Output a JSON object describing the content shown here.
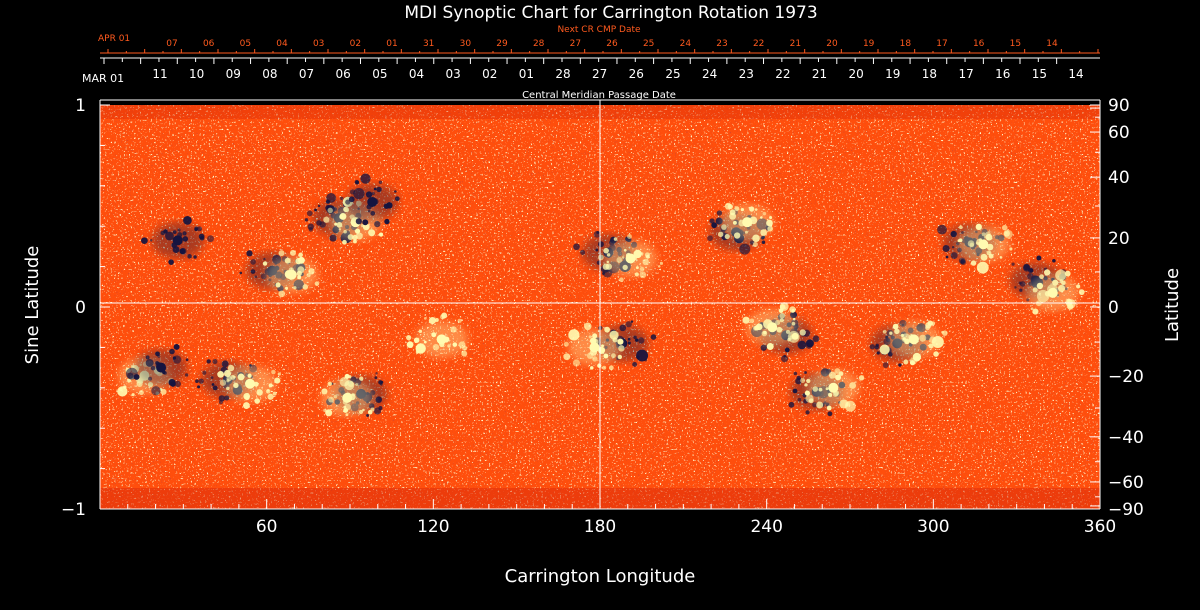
{
  "chart_data": {
    "type": "heatmap",
    "title": "MDI Synoptic Chart for Carrington Rotation 1973",
    "xlabel": "Carrington Longitude",
    "ylabel_left": "Sine Latitude",
    "ylabel_right": "Latitude",
    "top_axis_label": "Central Meridian Passage Date",
    "next_axis_label": "Next CR CMP Date",
    "xlim": [
      0,
      360
    ],
    "ylim": [
      -1,
      1
    ],
    "x_ticks": [
      "60",
      "120",
      "180",
      "240",
      "300",
      "360"
    ],
    "y_ticks_left": [
      "1",
      "0",
      "−1"
    ],
    "y_ticks_right": [
      "90",
      "60",
      "40",
      "20",
      "0",
      "−20",
      "−40",
      "−60",
      "−90"
    ],
    "cmp_start_label": "MAR 01",
    "cmp_dates": [
      "11",
      "10",
      "09",
      "08",
      "07",
      "06",
      "05",
      "04",
      "03",
      "02",
      "01",
      "28",
      "27",
      "26",
      "25",
      "24",
      "23",
      "22",
      "21",
      "20",
      "19",
      "18",
      "17",
      "16",
      "15",
      "14"
    ],
    "next_start_label": "APR 01",
    "next_dates": [
      "07",
      "06",
      "05",
      "04",
      "03",
      "02",
      "01",
      "31",
      "30",
      "29",
      "28",
      "27",
      "26",
      "25",
      "24",
      "23",
      "22",
      "21",
      "20",
      "19",
      "18",
      "17",
      "16",
      "15",
      "14"
    ],
    "active_regions": [
      {
        "lon": 86,
        "sinlat": 0.44,
        "polarity": "negative"
      },
      {
        "lon": 92,
        "sinlat": 0.42,
        "polarity": "positive"
      },
      {
        "lon": 98,
        "sinlat": 0.52,
        "polarity": "negative"
      },
      {
        "lon": 62,
        "sinlat": 0.18,
        "polarity": "negative"
      },
      {
        "lon": 69,
        "sinlat": 0.16,
        "polarity": "positive"
      },
      {
        "lon": 28,
        "sinlat": 0.33,
        "polarity": "negative"
      },
      {
        "lon": 183,
        "sinlat": 0.27,
        "polarity": "negative"
      },
      {
        "lon": 191,
        "sinlat": 0.24,
        "polarity": "positive"
      },
      {
        "lon": 229,
        "sinlat": 0.37,
        "polarity": "negative"
      },
      {
        "lon": 233,
        "sinlat": 0.42,
        "polarity": "positive"
      },
      {
        "lon": 313,
        "sinlat": 0.32,
        "polarity": "negative"
      },
      {
        "lon": 318,
        "sinlat": 0.31,
        "polarity": "positive"
      },
      {
        "lon": 337,
        "sinlat": 0.13,
        "polarity": "negative"
      },
      {
        "lon": 343,
        "sinlat": 0.07,
        "polarity": "positive"
      },
      {
        "lon": 16,
        "sinlat": -0.34,
        "polarity": "positive"
      },
      {
        "lon": 22,
        "sinlat": -0.3,
        "polarity": "negative"
      },
      {
        "lon": 46,
        "sinlat": -0.36,
        "polarity": "negative"
      },
      {
        "lon": 54,
        "sinlat": -0.38,
        "polarity": "positive"
      },
      {
        "lon": 94,
        "sinlat": -0.43,
        "polarity": "negative"
      },
      {
        "lon": 89,
        "sinlat": -0.45,
        "polarity": "positive"
      },
      {
        "lon": 123,
        "sinlat": -0.16,
        "polarity": "positive"
      },
      {
        "lon": 188,
        "sinlat": -0.18,
        "polarity": "negative"
      },
      {
        "lon": 178,
        "sinlat": -0.2,
        "polarity": "positive"
      },
      {
        "lon": 247,
        "sinlat": -0.14,
        "polarity": "negative"
      },
      {
        "lon": 242,
        "sinlat": -0.1,
        "polarity": "positive"
      },
      {
        "lon": 287,
        "sinlat": -0.18,
        "polarity": "negative"
      },
      {
        "lon": 293,
        "sinlat": -0.16,
        "polarity": "positive"
      },
      {
        "lon": 258,
        "sinlat": -0.42,
        "polarity": "negative"
      },
      {
        "lon": 264,
        "sinlat": -0.4,
        "polarity": "positive"
      }
    ],
    "colors": {
      "background": "#000000",
      "field_base": "#ff4e0c",
      "negative": "#141440",
      "positive": "#fffbb0",
      "next_axis": "#ff5a1e"
    }
  }
}
